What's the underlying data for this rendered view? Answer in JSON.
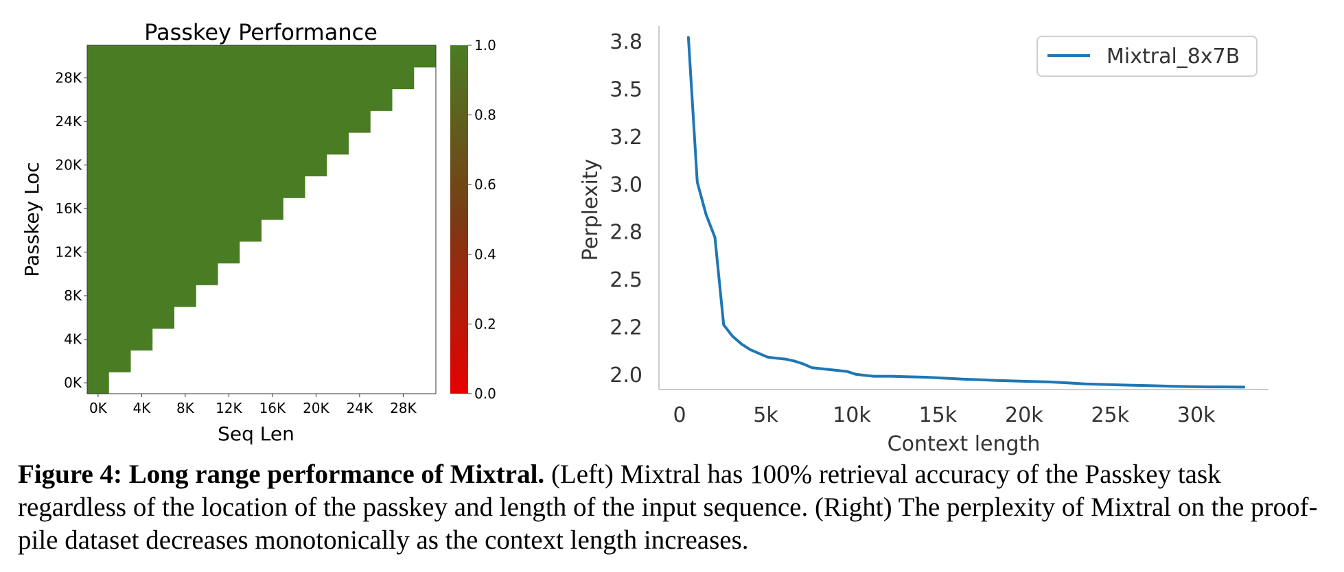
{
  "chart_data": [
    {
      "type": "heatmap",
      "title": "Passkey Performance",
      "xlabel": "Seq Len",
      "ylabel": "Passkey Loc",
      "x_ticks": [
        "0K",
        "4K",
        "8K",
        "12K",
        "16K",
        "20K",
        "24K",
        "28K"
      ],
      "y_ticks": [
        "0K",
        "4K",
        "8K",
        "12K",
        "16K",
        "20K",
        "24K",
        "28K"
      ],
      "grid_steps": 16,
      "cell_value": 1.0,
      "colorbar": {
        "ticks": [
          "0.0",
          "0.2",
          "0.4",
          "0.6",
          "0.8",
          "1.0"
        ],
        "range": [
          0.0,
          1.0
        ],
        "colors": [
          "#e60000",
          "#7a3a14",
          "#4a7c23"
        ]
      },
      "colors": {
        "filled": "#4a7c23"
      }
    },
    {
      "type": "line",
      "xlabel": "Context length",
      "ylabel": "Perplexity",
      "xlim": [
        -1200,
        34200
      ],
      "ylim": [
        1.92,
        3.83
      ],
      "x_ticks": [
        {
          "v": 0,
          "label": "0"
        },
        {
          "v": 5000,
          "label": "5k"
        },
        {
          "v": 10000,
          "label": "10k"
        },
        {
          "v": 15000,
          "label": "15k"
        },
        {
          "v": 20000,
          "label": "20k"
        },
        {
          "v": 25000,
          "label": "25k"
        },
        {
          "v": 30000,
          "label": "30k"
        }
      ],
      "y_ticks": [
        {
          "v": 2.0,
          "label": "2.0"
        },
        {
          "v": 2.25,
          "label": "2.2"
        },
        {
          "v": 2.5,
          "label": "2.5"
        },
        {
          "v": 2.75,
          "label": "2.8"
        },
        {
          "v": 3.0,
          "label": "3.0"
        },
        {
          "v": 3.25,
          "label": "3.2"
        },
        {
          "v": 3.5,
          "label": "3.5"
        },
        {
          "v": 3.75,
          "label": "3.8"
        }
      ],
      "legend_position": "top-right",
      "series": [
        {
          "name": "Mixtral_8x7B",
          "color": "#1f77b4",
          "x": [
            512,
            1024,
            1536,
            2048,
            2560,
            3072,
            3584,
            4096,
            4608,
            5120,
            5632,
            6144,
            6656,
            7168,
            7680,
            8192,
            8704,
            9216,
            9728,
            10240,
            10752,
            11264,
            12288,
            13312,
            14336,
            15360,
            16384,
            17408,
            18432,
            19456,
            20480,
            21504,
            22528,
            23552,
            24576,
            25600,
            26624,
            27648,
            28672,
            29696,
            30720,
            31744,
            32768
          ],
          "y": [
            3.77,
            3.01,
            2.84,
            2.72,
            2.26,
            2.2,
            2.16,
            2.13,
            2.11,
            2.09,
            2.085,
            2.08,
            2.07,
            2.055,
            2.035,
            2.03,
            2.025,
            2.02,
            2.015,
            2.0,
            1.995,
            1.99,
            1.99,
            1.987,
            1.985,
            1.98,
            1.975,
            1.972,
            1.968,
            1.965,
            1.962,
            1.96,
            1.955,
            1.95,
            1.947,
            1.944,
            1.942,
            1.94,
            1.937,
            1.935,
            1.934,
            1.934,
            1.933
          ]
        }
      ]
    }
  ],
  "caption": {
    "label": "Figure 4: Long range performance of Mixtral.",
    "text": " (Left) Mixtral has 100% retrieval accuracy of the Passkey task regardless of the location of the passkey and length of the input sequence. (Right) The perplexity of Mixtral on the proof-pile dataset decreases monotonically as the context length increases."
  }
}
